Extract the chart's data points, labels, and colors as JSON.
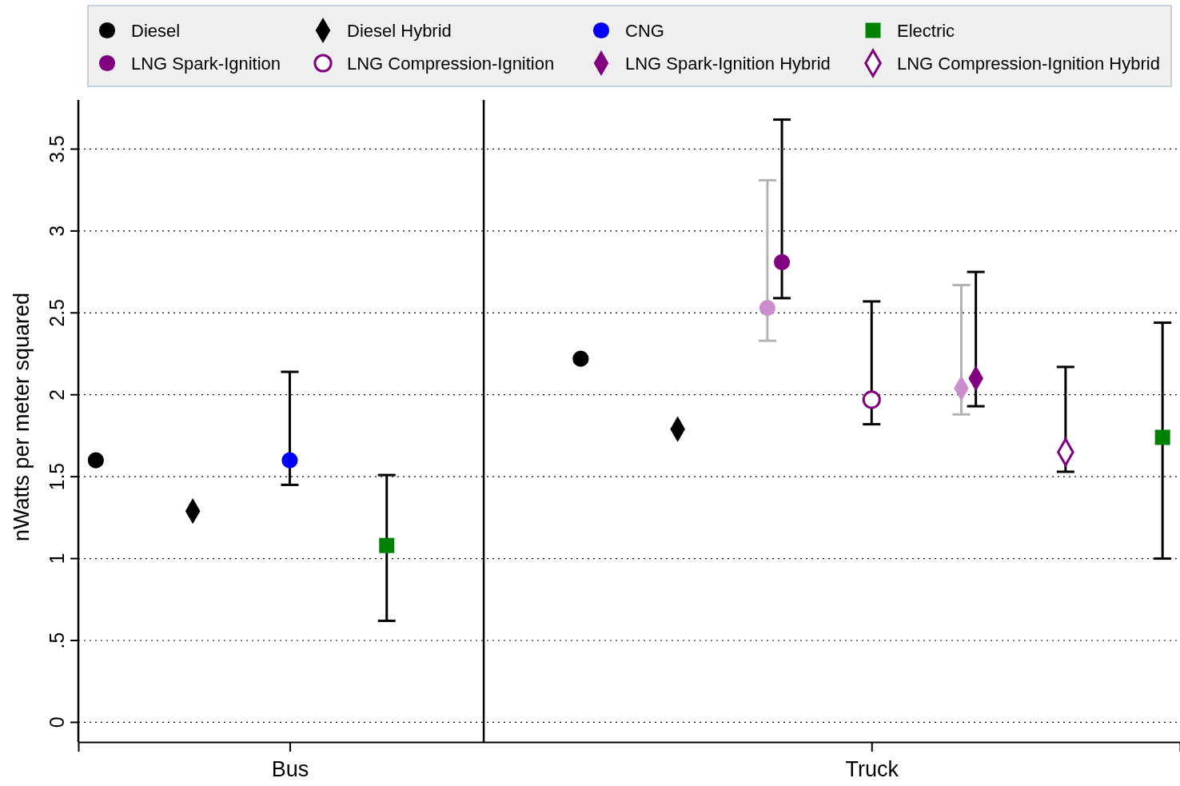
{
  "chart_data": {
    "type": "scatter",
    "ylabel": "nWatts per meter squared",
    "categories": [
      null,
      null,
      "Bus",
      null,
      null,
      null,
      null,
      null,
      "Truck",
      null,
      null,
      null
    ],
    "ylim": [
      -0.12,
      3.8
    ],
    "yticks": [
      0,
      {
        "value": 0.5,
        "label": ".5"
      },
      1,
      1.5,
      2,
      2.5,
      3,
      3.5
    ],
    "grid": "y",
    "legend": "top",
    "series": [
      {
        "name": "Diesel",
        "color": "#000000",
        "marker": "circle",
        "values": [
          1.6,
          null,
          null,
          null,
          null,
          2.22,
          null,
          null,
          null,
          null,
          null,
          null
        ]
      },
      {
        "name": "Diesel Hybrid",
        "color": "#000000",
        "marker": "diamond",
        "values": [
          null,
          1.29,
          null,
          null,
          null,
          null,
          1.79,
          null,
          null,
          null,
          null,
          null
        ]
      },
      {
        "name": "CNG",
        "color": "#0000ff",
        "marker": "circle",
        "values": [
          null,
          null,
          1.6,
          null,
          null,
          null,
          null,
          null,
          null,
          null,
          null,
          null
        ],
        "errors": [
          null,
          null,
          [
            1.45,
            2.14
          ],
          null,
          null,
          null,
          null,
          null,
          null,
          null,
          null,
          null
        ]
      },
      {
        "name": "Electric",
        "color": "#008000",
        "marker": "square",
        "values": [
          null,
          null,
          null,
          1.08,
          null,
          null,
          null,
          null,
          null,
          null,
          null,
          1.74
        ],
        "errors": [
          null,
          null,
          null,
          [
            0.62,
            1.51
          ],
          null,
          null,
          null,
          null,
          null,
          null,
          null,
          [
            1.0,
            2.44
          ]
        ]
      },
      {
        "color": "#c98ecb",
        "marker": "circle",
        "values": [
          null,
          null,
          null,
          null,
          null,
          null,
          null,
          2.53,
          null,
          null,
          null,
          null
        ],
        "errors": [
          null,
          null,
          null,
          null,
          null,
          null,
          null,
          [
            2.33,
            3.31
          ],
          null,
          null,
          null,
          null
        ]
      },
      {
        "name": "LNG Spark-Ignition",
        "color": "#800080",
        "marker": "circle",
        "values": [
          null,
          null,
          null,
          null,
          null,
          null,
          null,
          2.81,
          null,
          null,
          null,
          null
        ],
        "errors": [
          null,
          null,
          null,
          null,
          null,
          null,
          null,
          [
            2.59,
            3.68
          ],
          null,
          null,
          null,
          null
        ]
      },
      {
        "name": "LNG Compression-Ignition",
        "color": "#800080",
        "marker": "circle-open",
        "values": [
          null,
          null,
          null,
          null,
          null,
          null,
          null,
          null,
          1.97,
          null,
          null,
          null
        ],
        "errors": [
          null,
          null,
          null,
          null,
          null,
          null,
          null,
          null,
          [
            1.82,
            2.57
          ],
          null,
          null,
          null
        ]
      },
      {
        "color": "#c98ecb",
        "marker": "diamond",
        "values": [
          null,
          null,
          null,
          null,
          null,
          null,
          null,
          null,
          null,
          2.04,
          null,
          null
        ],
        "errors": [
          null,
          null,
          null,
          null,
          null,
          null,
          null,
          null,
          null,
          [
            1.88,
            2.67
          ],
          null,
          null
        ]
      },
      {
        "name": "LNG Spark-Ignition Hybrid",
        "color": "#800080",
        "marker": "diamond",
        "values": [
          null,
          null,
          null,
          null,
          null,
          null,
          null,
          null,
          null,
          2.1,
          null,
          null
        ],
        "errors": [
          null,
          null,
          null,
          null,
          null,
          null,
          null,
          null,
          null,
          [
            1.93,
            2.75
          ],
          null,
          null
        ]
      },
      {
        "name": "LNG Compression-Ignition Hybrid",
        "color": "#800080",
        "marker": "diamond-open",
        "values": [
          null,
          null,
          null,
          null,
          null,
          null,
          null,
          null,
          null,
          null,
          1.65,
          null
        ],
        "errors": [
          null,
          null,
          null,
          null,
          null,
          null,
          null,
          null,
          null,
          null,
          [
            1.53,
            2.17
          ],
          null
        ]
      }
    ]
  }
}
